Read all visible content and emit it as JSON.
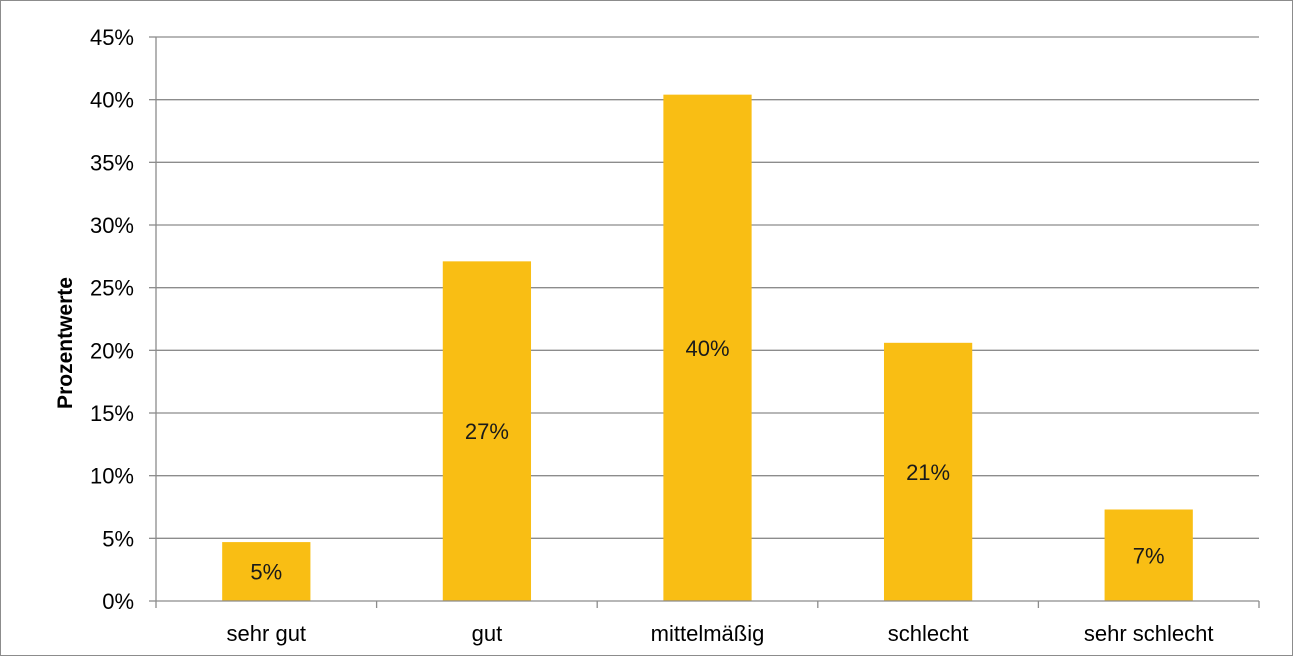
{
  "chart_data": {
    "type": "bar",
    "title": "",
    "xlabel": "",
    "ylabel": "Prozentwerte",
    "categories": [
      "sehr gut",
      "gut",
      "mittelmäßig",
      "schlecht",
      "sehr schlecht"
    ],
    "values": [
      4.7,
      27.1,
      40.4,
      20.6,
      7.3
    ],
    "data_labels": [
      "5%",
      "27%",
      "40%",
      "21%",
      "7%"
    ],
    "ylim": [
      0,
      45
    ],
    "yticks": [
      0,
      5,
      10,
      15,
      20,
      25,
      30,
      35,
      40,
      45
    ],
    "ytick_labels": [
      "0%",
      "5%",
      "10%",
      "15%",
      "20%",
      "25%",
      "30%",
      "35%",
      "40%",
      "45%"
    ],
    "grid": true,
    "legend": "none",
    "bar_color": "#F9BE14",
    "grid_color": "#8c8c8c"
  }
}
